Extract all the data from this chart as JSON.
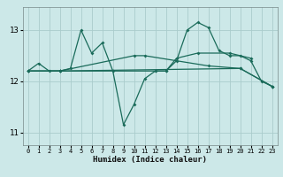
{
  "title": "",
  "xlabel": "Humidex (Indice chaleur)",
  "bg_color": "#cce8e8",
  "grid_color": "#aacccc",
  "line_color": "#1a6b5a",
  "xlim": [
    -0.5,
    23.5
  ],
  "ylim": [
    10.75,
    13.45
  ],
  "yticks": [
    11,
    12,
    13
  ],
  "xticks": [
    0,
    1,
    2,
    3,
    4,
    5,
    6,
    7,
    8,
    9,
    10,
    11,
    12,
    13,
    14,
    15,
    16,
    17,
    18,
    19,
    20,
    21,
    22,
    23
  ],
  "lines": [
    {
      "x": [
        0,
        1,
        2,
        3,
        4,
        5,
        6,
        7,
        8,
        9,
        10,
        11,
        12,
        13,
        14,
        15,
        16,
        17,
        18,
        19,
        20,
        21,
        22,
        23
      ],
      "y": [
        12.2,
        12.35,
        12.2,
        12.2,
        12.25,
        13.0,
        12.55,
        12.75,
        12.2,
        11.15,
        11.55,
        12.05,
        12.2,
        12.2,
        12.4,
        13.0,
        13.15,
        13.05,
        12.6,
        12.5,
        12.5,
        12.4,
        12.0,
        11.9
      ]
    },
    {
      "x": [
        0,
        3,
        12,
        13,
        14,
        16,
        19,
        21
      ],
      "y": [
        12.2,
        12.2,
        12.2,
        12.2,
        12.45,
        12.55,
        12.55,
        12.45
      ]
    },
    {
      "x": [
        0,
        3,
        10,
        11,
        17,
        20,
        23
      ],
      "y": [
        12.2,
        12.2,
        12.5,
        12.5,
        12.3,
        12.25,
        11.9
      ]
    },
    {
      "x": [
        0,
        3,
        20,
        23
      ],
      "y": [
        12.2,
        12.2,
        12.25,
        11.9
      ]
    }
  ]
}
